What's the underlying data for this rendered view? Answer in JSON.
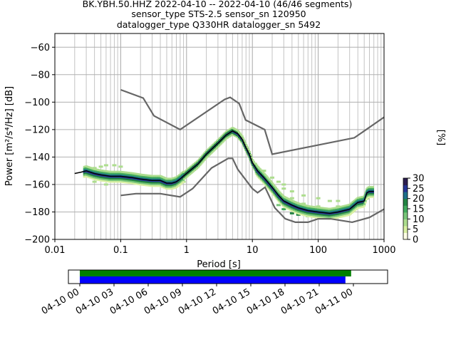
{
  "chart_data": [
    {
      "type": "heatmap",
      "title_lines": [
        "BK.YBH.50.HHZ   2022-04-10 -- 2022-04-10  (46/46 segments)",
        "sensor_type STS-2.5 sensor_sn 120950",
        "datalogger_type Q330HR datalogger_sn 5492"
      ],
      "xlabel": "Period [s]",
      "ylabel": "Power [m²/s⁴/Hz] [dB]",
      "xscale": "log",
      "xlim": [
        0.01,
        1000
      ],
      "ylim": [
        -200,
        -50
      ],
      "x_ticks": [
        {
          "value": 0.01,
          "label": "0.01"
        },
        {
          "value": 0.1,
          "label": "0.1"
        },
        {
          "value": 1,
          "label": "1"
        },
        {
          "value": 10,
          "label": "10"
        },
        {
          "value": 100,
          "label": "100"
        },
        {
          "value": 1000,
          "label": "1000"
        }
      ],
      "y_ticks": [
        {
          "value": -60,
          "label": "−60"
        },
        {
          "value": -80,
          "label": "−80"
        },
        {
          "value": -100,
          "label": "−100"
        },
        {
          "value": -120,
          "label": "−120"
        },
        {
          "value": -140,
          "label": "−140"
        },
        {
          "value": -160,
          "label": "−160"
        },
        {
          "value": -180,
          "label": "−180"
        },
        {
          "value": -200,
          "label": "−200"
        }
      ],
      "grid": true,
      "colorbar": {
        "label": "[%]",
        "range": [
          0,
          30
        ],
        "ticks": [
          {
            "value": 0,
            "label": "0"
          },
          {
            "value": 5,
            "label": "5"
          },
          {
            "value": 10,
            "label": "10"
          },
          {
            "value": 15,
            "label": "15"
          },
          {
            "value": 20,
            "label": "20"
          },
          {
            "value": 25,
            "label": "25"
          },
          {
            "value": 30,
            "label": "30"
          }
        ],
        "colors": [
          "#ffffe5",
          "#d9f0a3",
          "#addd8e",
          "#78c679",
          "#41ab5d",
          "#238443",
          "#1d6f8a",
          "#253494",
          "#2c1e4f"
        ]
      },
      "mode_curve": [
        [
          0.02,
          -152
        ],
        [
          0.025,
          -151
        ],
        [
          0.03,
          -150
        ],
        [
          0.04,
          -152
        ],
        [
          0.05,
          -153
        ],
        [
          0.07,
          -154
        ],
        [
          0.1,
          -154
        ],
        [
          0.15,
          -155
        ],
        [
          0.2,
          -156
        ],
        [
          0.3,
          -157
        ],
        [
          0.4,
          -157
        ],
        [
          0.5,
          -159
        ],
        [
          0.6,
          -159
        ],
        [
          0.7,
          -158
        ],
        [
          0.8,
          -156
        ],
        [
          1,
          -152
        ],
        [
          1.5,
          -145
        ],
        [
          2,
          -138
        ],
        [
          3,
          -130
        ],
        [
          4,
          -124
        ],
        [
          5,
          -121
        ],
        [
          6,
          -123
        ],
        [
          7,
          -127
        ],
        [
          8,
          -133
        ],
        [
          9,
          -138
        ],
        [
          10,
          -144
        ],
        [
          12,
          -150
        ],
        [
          15,
          -155
        ],
        [
          20,
          -162
        ],
        [
          25,
          -168
        ],
        [
          30,
          -172
        ],
        [
          40,
          -175
        ],
        [
          50,
          -177
        ],
        [
          70,
          -179
        ],
        [
          100,
          -180
        ],
        [
          150,
          -181
        ],
        [
          200,
          -180
        ],
        [
          300,
          -178
        ],
        [
          400,
          -173
        ],
        [
          500,
          -172
        ],
        [
          550,
          -166
        ],
        [
          600,
          -165
        ],
        [
          700,
          -165
        ]
      ],
      "nhnm": [
        [
          0.1,
          -91
        ],
        [
          0.22,
          -97
        ],
        [
          0.32,
          -110
        ],
        [
          0.8,
          -120
        ],
        [
          3.8,
          -98
        ],
        [
          4.6,
          -96.5
        ],
        [
          6.3,
          -101
        ],
        [
          7.9,
          -113
        ],
        [
          15.4,
          -120
        ],
        [
          20,
          -138
        ],
        [
          354,
          -126
        ],
        [
          1000,
          -111
        ]
      ],
      "nlnm": [
        [
          0.1,
          -168
        ],
        [
          0.17,
          -166.7
        ],
        [
          0.4,
          -166.7
        ],
        [
          0.8,
          -169
        ],
        [
          1.24,
          -163
        ],
        [
          2.4,
          -148
        ],
        [
          4.3,
          -141
        ],
        [
          5,
          -141
        ],
        [
          6,
          -149
        ],
        [
          10,
          -163
        ],
        [
          12,
          -166
        ],
        [
          15.6,
          -162
        ],
        [
          21.9,
          -177
        ],
        [
          31.6,
          -185
        ],
        [
          45,
          -187.5
        ],
        [
          70,
          -187.5
        ],
        [
          100,
          -185
        ],
        [
          154,
          -185
        ],
        [
          328,
          -187.5
        ],
        [
          600,
          -184
        ],
        [
          1000,
          -178
        ]
      ],
      "density_cells": [
        [
          0.03,
          -150,
          0.6
        ],
        [
          0.04,
          -148,
          0.3
        ],
        [
          0.05,
          -147,
          0.3
        ],
        [
          0.06,
          -146,
          0.3
        ],
        [
          0.08,
          -146,
          0.3
        ],
        [
          0.1,
          -147,
          0.3
        ],
        [
          0.05,
          -150,
          0.8
        ],
        [
          0.07,
          -151,
          1
        ],
        [
          0.1,
          -152,
          0.8
        ],
        [
          0.15,
          -153,
          0.8
        ],
        [
          0.2,
          -154,
          1
        ],
        [
          0.3,
          -155,
          0.8
        ],
        [
          0.05,
          -156,
          0.4
        ],
        [
          0.07,
          -157,
          0.5
        ],
        [
          0.1,
          -157,
          0.5
        ],
        [
          0.15,
          -157,
          0.6
        ],
        [
          0.04,
          -158,
          0.2
        ],
        [
          0.06,
          -160,
          0.2
        ],
        [
          0.2,
          -158,
          0.5
        ],
        [
          0.3,
          -159,
          0.4
        ],
        [
          0.4,
          -160,
          0.4
        ],
        [
          0.5,
          -161,
          0.5
        ],
        [
          0.6,
          -161,
          0.4
        ],
        [
          0.5,
          -162,
          0.2
        ],
        [
          0.7,
          -160,
          0.4
        ],
        [
          0.9,
          -158,
          0.3
        ],
        [
          12,
          -152,
          0.5
        ],
        [
          14,
          -156,
          0.5
        ],
        [
          15,
          -150,
          0.2
        ],
        [
          20,
          -155,
          0.3
        ],
        [
          25,
          -158,
          0.3
        ],
        [
          30,
          -163,
          0.2
        ],
        [
          20,
          -164,
          0.5
        ],
        [
          25,
          -170,
          0.5
        ],
        [
          30,
          -174,
          0.6
        ],
        [
          40,
          -177,
          0.6
        ],
        [
          50,
          -179,
          0.6
        ],
        [
          70,
          -180,
          0.6
        ],
        [
          100,
          -181,
          0.6
        ],
        [
          150,
          -181,
          0.5
        ],
        [
          30,
          -160,
          0.2
        ],
        [
          40,
          -165,
          0.2
        ],
        [
          60,
          -168,
          0.2
        ],
        [
          100,
          -170,
          0.2
        ],
        [
          150,
          -172,
          0.2
        ],
        [
          200,
          -172,
          0.2
        ],
        [
          40,
          -170,
          0.3
        ],
        [
          60,
          -174,
          0.3
        ],
        [
          100,
          -176,
          0.3
        ],
        [
          150,
          -178,
          0.3
        ],
        [
          25,
          -175,
          0.4
        ],
        [
          30,
          -178,
          0.5
        ],
        [
          40,
          -181,
          0.6
        ],
        [
          50,
          -182,
          0.6
        ],
        [
          70,
          -183,
          0.5
        ],
        [
          100,
          -183,
          0.4
        ],
        [
          200,
          -176,
          0.3
        ],
        [
          300,
          -175,
          0.3
        ],
        [
          450,
          -170,
          0.3
        ],
        [
          600,
          -167,
          0.6
        ],
        [
          600,
          -163,
          0.3
        ],
        [
          550,
          -170,
          0.4
        ]
      ],
      "time_axis": {
        "tick_labels": [
          "04-10 00",
          "04-10 03",
          "04-10 06",
          "04-10 09",
          "04-10 12",
          "04-10 15",
          "04-10 18",
          "04-10 21",
          "04-11 00"
        ],
        "range_hours": [
          -1,
          27
        ],
        "green_bar_hours": [
          0,
          23.8
        ],
        "blue_bar_hours": [
          0,
          23.3
        ],
        "green": "#008000",
        "blue": "#0000ff"
      }
    }
  ]
}
